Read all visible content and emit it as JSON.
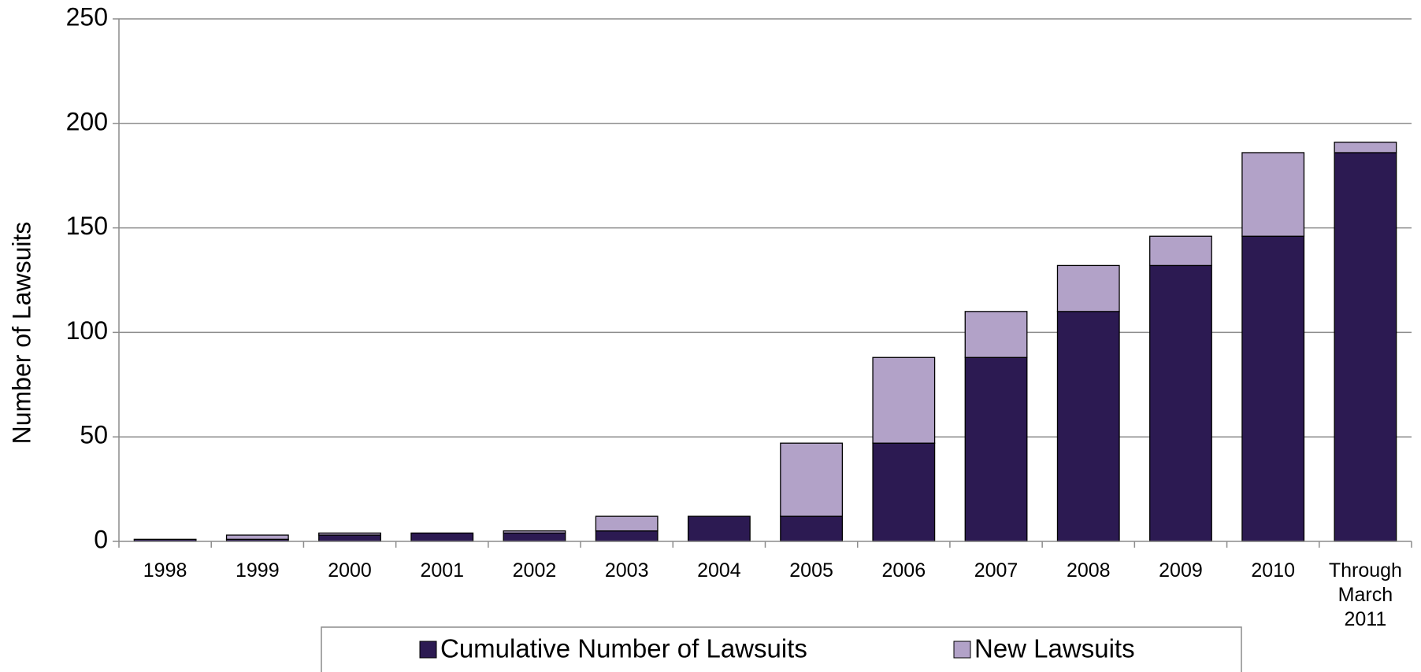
{
  "chart_data": {
    "type": "stacked_bar",
    "y_axis_label": "Number of Lawsuits",
    "categories": [
      "1998",
      "1999",
      "2000",
      "2001",
      "2002",
      "2003",
      "2004",
      "2005",
      "2006",
      "2007",
      "2008",
      "2009",
      "2010",
      "Through March 2011"
    ],
    "series": [
      {
        "name": "Cumulative Number of Lawsuits",
        "color": "#2c1a52",
        "values": [
          1,
          1,
          3,
          4,
          4,
          5,
          12,
          12,
          47,
          88,
          110,
          132,
          146,
          186
        ]
      },
      {
        "name": "New Lawsuits",
        "color": "#b2a2c8",
        "values": [
          0,
          2,
          1,
          0,
          1,
          7,
          0,
          35,
          41,
          22,
          22,
          14,
          40,
          5
        ]
      }
    ],
    "ylim": [
      0,
      250
    ],
    "yticks": [
      0,
      50,
      100,
      150,
      200,
      250
    ],
    "grid": true,
    "legend": "bottom"
  }
}
